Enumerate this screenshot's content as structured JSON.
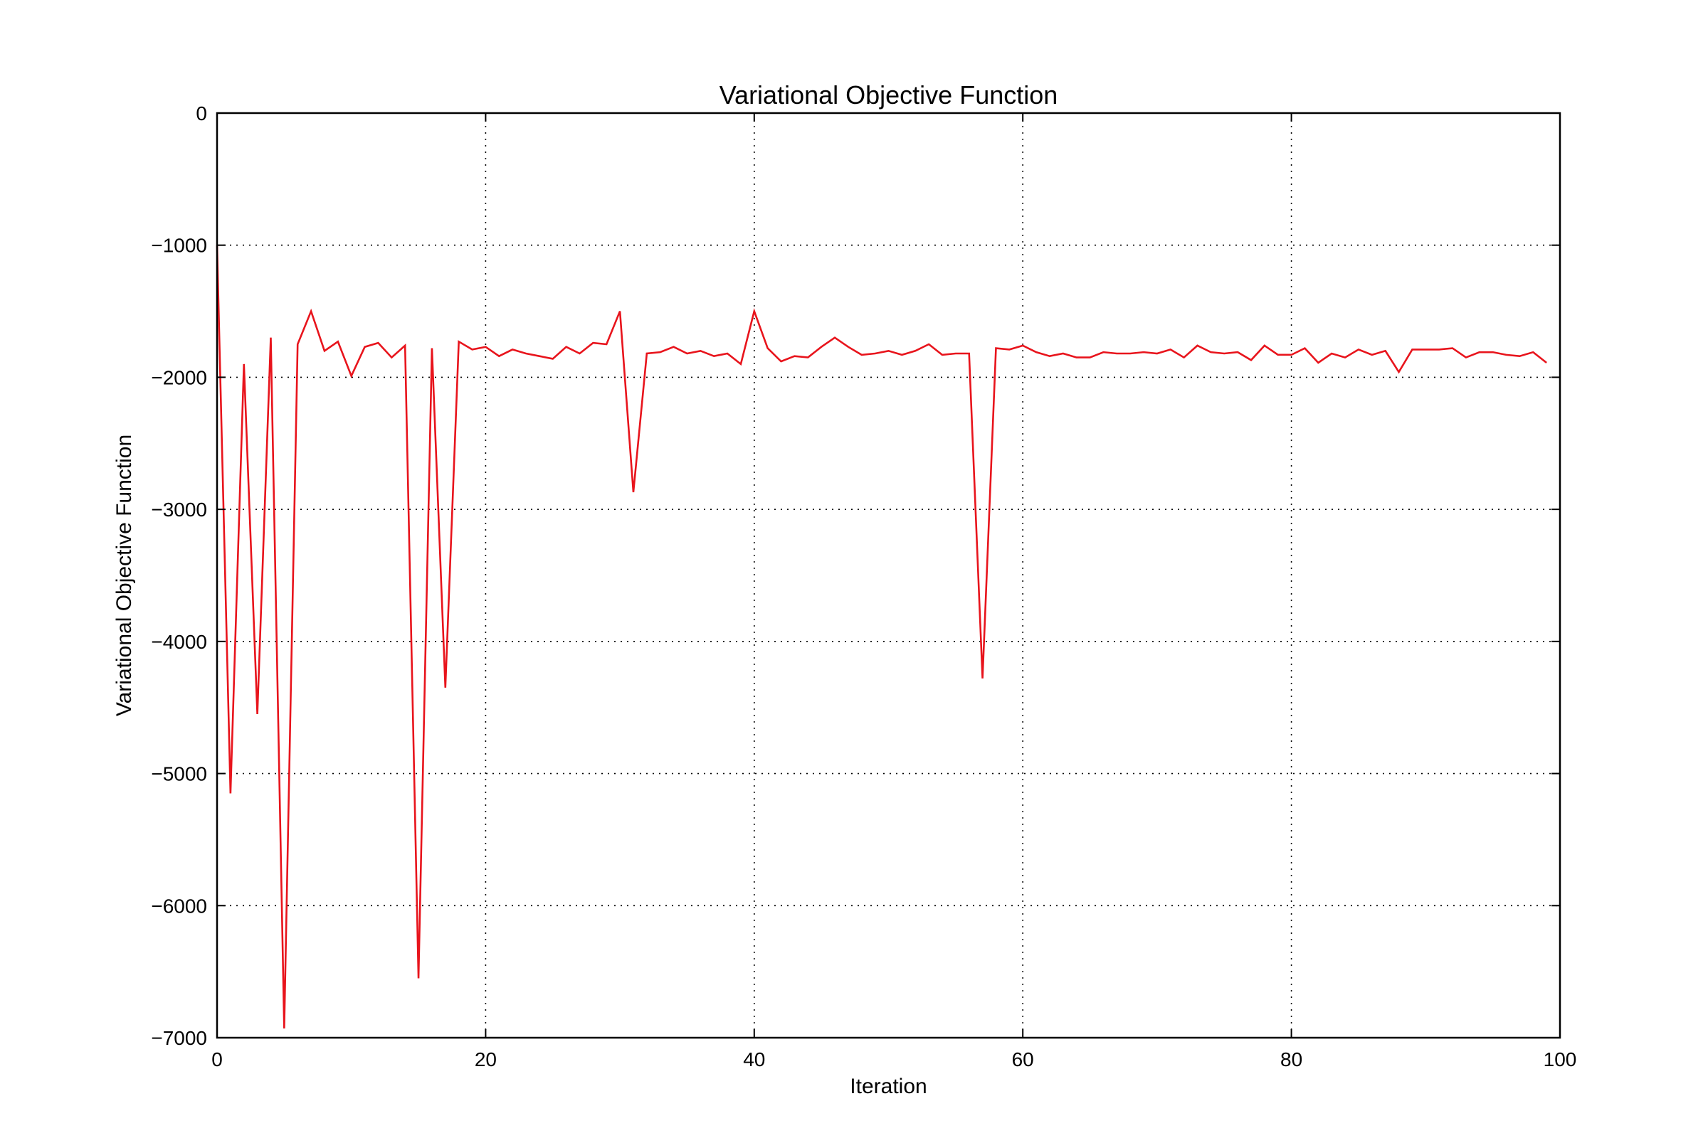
{
  "chart_data": {
    "type": "line",
    "title": "Variational Objective Function",
    "xlabel": "Iteration",
    "ylabel": "Variational Objective Function",
    "xlim": [
      0,
      100
    ],
    "ylim": [
      -7000,
      0
    ],
    "xticks": [
      0,
      20,
      40,
      60,
      80,
      100
    ],
    "xtick_labels": [
      "0",
      "20",
      "40",
      "60",
      "80",
      "100"
    ],
    "yticks": [
      0,
      -1000,
      -2000,
      -3000,
      -4000,
      -5000,
      -6000,
      -7000
    ],
    "ytick_labels": [
      "0",
      "−1000",
      "−2000",
      "−3000",
      "−4000",
      "−5000",
      "−6000",
      "−7000"
    ],
    "grid": true,
    "series": [
      {
        "color": "#e8141c",
        "x": [
          0,
          1,
          2,
          3,
          4,
          5,
          6,
          7,
          8,
          9,
          10,
          11,
          12,
          13,
          14,
          15,
          16,
          17,
          18,
          19,
          20,
          21,
          22,
          23,
          24,
          25,
          26,
          27,
          28,
          29,
          30,
          31,
          32,
          33,
          34,
          35,
          36,
          37,
          38,
          39,
          40,
          41,
          42,
          43,
          44,
          45,
          46,
          47,
          48,
          49,
          50,
          51,
          52,
          53,
          54,
          55,
          56,
          57,
          58,
          59,
          60,
          61,
          62,
          63,
          64,
          65,
          66,
          67,
          68,
          69,
          70,
          71,
          72,
          73,
          74,
          75,
          76,
          77,
          78,
          79,
          80,
          81,
          82,
          83,
          84,
          85,
          86,
          87,
          88,
          89,
          90,
          91,
          92,
          93,
          94,
          95,
          96,
          97,
          98,
          99
        ],
        "y": [
          -1000,
          -5150,
          -1900,
          -4550,
          -1700,
          -6930,
          -1750,
          -1500,
          -1800,
          -1730,
          -1990,
          -1770,
          -1740,
          -1850,
          -1760,
          -6550,
          -1780,
          -4350,
          -1730,
          -1790,
          -1770,
          -1840,
          -1790,
          -1820,
          -1840,
          -1860,
          -1770,
          -1820,
          -1740,
          -1750,
          -1500,
          -2870,
          -1820,
          -1810,
          -1770,
          -1820,
          -1800,
          -1840,
          -1820,
          -1900,
          -1500,
          -1780,
          -1880,
          -1840,
          -1850,
          -1770,
          -1700,
          -1770,
          -1830,
          -1820,
          -1800,
          -1830,
          -1800,
          -1750,
          -1830,
          -1820,
          -1820,
          -4280,
          -1780,
          -1790,
          -1760,
          -1810,
          -1840,
          -1820,
          -1850,
          -1850,
          -1810,
          -1820,
          -1820,
          -1810,
          -1820,
          -1790,
          -1850,
          -1760,
          -1810,
          -1820,
          -1810,
          -1870,
          -1760,
          -1830,
          -1830,
          -1780,
          -1890,
          -1820,
          -1850,
          -1790,
          -1830,
          -1800,
          -1960,
          -1790,
          -1790,
          -1790,
          -1780,
          -1850,
          -1810,
          -1810,
          -1830,
          -1840,
          -1810,
          -1890
        ]
      }
    ]
  }
}
